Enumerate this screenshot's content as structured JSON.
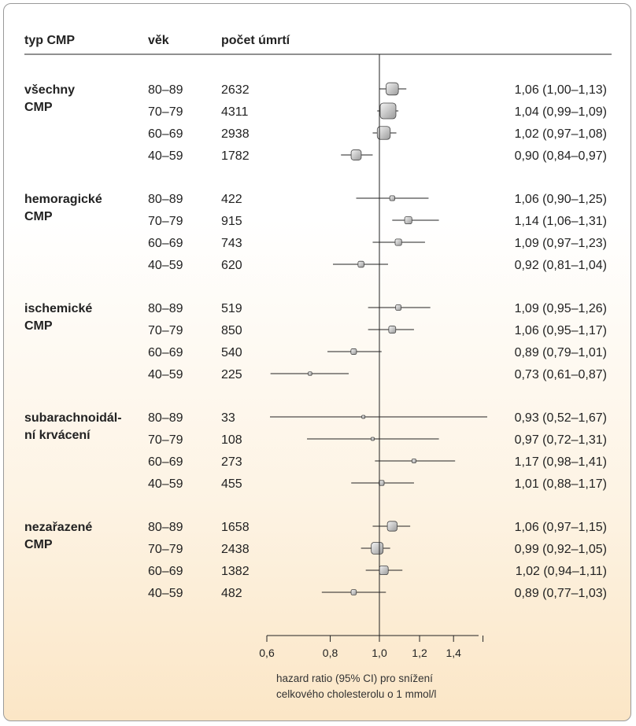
{
  "chart_data": {
    "type": "forest",
    "headers": [
      "typ CMP",
      "věk",
      "počet úmrtí"
    ],
    "groups": [
      {
        "label_lines": [
          "všechny",
          "CMP"
        ],
        "rows": [
          {
            "age": "80–89",
            "n": "2632",
            "hr": 1.06,
            "lo": 1.0,
            "hi": 1.13,
            "ci_text": "1,06 (1,00–1,13)"
          },
          {
            "age": "70–79",
            "n": "4311",
            "hr": 1.04,
            "lo": 0.99,
            "hi": 1.09,
            "ci_text": "1,04 (0,99–1,09)"
          },
          {
            "age": "60–69",
            "n": "2938",
            "hr": 1.02,
            "lo": 0.97,
            "hi": 1.08,
            "ci_text": "1,02 (0,97–1,08)"
          },
          {
            "age": "40–59",
            "n": "1782",
            "hr": 0.9,
            "lo": 0.84,
            "hi": 0.97,
            "ci_text": "0,90 (0,84–0,97)"
          }
        ]
      },
      {
        "label_lines": [
          "hemoragické",
          "CMP"
        ],
        "rows": [
          {
            "age": "80–89",
            "n": "422",
            "hr": 1.06,
            "lo": 0.9,
            "hi": 1.25,
            "ci_text": "1,06 (0,90–1,25)"
          },
          {
            "age": "70–79",
            "n": "915",
            "hr": 1.14,
            "lo": 1.06,
            "hi": 1.31,
            "ci_text": "1,14 (1,06–1,31)"
          },
          {
            "age": "60–69",
            "n": "743",
            "hr": 1.09,
            "lo": 0.97,
            "hi": 1.23,
            "ci_text": "1,09 (0,97–1,23)"
          },
          {
            "age": "40–59",
            "n": "620",
            "hr": 0.92,
            "lo": 0.81,
            "hi": 1.04,
            "ci_text": "0,92 (0,81–1,04)"
          }
        ]
      },
      {
        "label_lines": [
          "ischemické",
          "CMP"
        ],
        "rows": [
          {
            "age": "80–89",
            "n": "519",
            "hr": 1.09,
            "lo": 0.95,
            "hi": 1.26,
            "ci_text": "1,09 (0,95–1,26)"
          },
          {
            "age": "70–79",
            "n": "850",
            "hr": 1.06,
            "lo": 0.95,
            "hi": 1.17,
            "ci_text": "1,06 (0,95–1,17)"
          },
          {
            "age": "60–69",
            "n": "540",
            "hr": 0.89,
            "lo": 0.79,
            "hi": 1.01,
            "ci_text": "0,89 (0,79–1,01)"
          },
          {
            "age": "40–59",
            "n": "225",
            "hr": 0.73,
            "lo": 0.61,
            "hi": 0.87,
            "ci_text": "0,73 (0,61–0,87)"
          }
        ]
      },
      {
        "label_lines": [
          "subarachnoidál-",
          "ní krvácení"
        ],
        "rows": [
          {
            "age": "80–89",
            "n": "33",
            "hr": 0.93,
            "lo": 0.52,
            "hi": 1.67,
            "ci_text": "0,93 (0,52–1,67)"
          },
          {
            "age": "70–79",
            "n": "108",
            "hr": 0.97,
            "lo": 0.72,
            "hi": 1.31,
            "ci_text": "0,97 (0,72–1,31)"
          },
          {
            "age": "60–69",
            "n": "273",
            "hr": 1.17,
            "lo": 0.98,
            "hi": 1.41,
            "ci_text": "1,17 (0,98–1,41)"
          },
          {
            "age": "40–59",
            "n": "455",
            "hr": 1.01,
            "lo": 0.88,
            "hi": 1.17,
            "ci_text": "1,01 (0,88–1,17)"
          }
        ]
      },
      {
        "label_lines": [
          "nezařazené",
          "CMP"
        ],
        "rows": [
          {
            "age": "80–89",
            "n": "1658",
            "hr": 1.06,
            "lo": 0.97,
            "hi": 1.15,
            "ci_text": "1,06 (0,97–1,15)"
          },
          {
            "age": "70–79",
            "n": "2438",
            "hr": 0.99,
            "lo": 0.92,
            "hi": 1.05,
            "ci_text": "0,99 (0,92–1,05)"
          },
          {
            "age": "60–69",
            "n": "1382",
            "hr": 1.02,
            "lo": 0.94,
            "hi": 1.11,
            "ci_text": "1,02 (0,94–1,11)"
          },
          {
            "age": "40–59",
            "n": "482",
            "hr": 0.89,
            "lo": 0.77,
            "hi": 1.03,
            "ci_text": "0,89 (0,77–1,03)"
          }
        ]
      }
    ],
    "x_axis": {
      "scale": "log",
      "ticks": [
        0.6,
        0.8,
        1.0,
        1.2,
        1.4
      ],
      "tick_labels": [
        "0,6",
        "0,8",
        "1,0",
        "1,2",
        "1,4"
      ],
      "minor_ticks": [
        1.6
      ],
      "reference_line": 1.0,
      "label_lines": [
        "hazard ratio (95% CI) pro snížení",
        "celkového cholesterolu o 1 mmol/l"
      ]
    },
    "colors": {
      "marker_fill_light": "#f4f4f4",
      "marker_fill_dark": "#9a9a9a",
      "marker_stroke": "#444444",
      "line": "#222222",
      "frame_border": "#9a9a9a",
      "background_bottom": "#fbe6c6"
    }
  }
}
